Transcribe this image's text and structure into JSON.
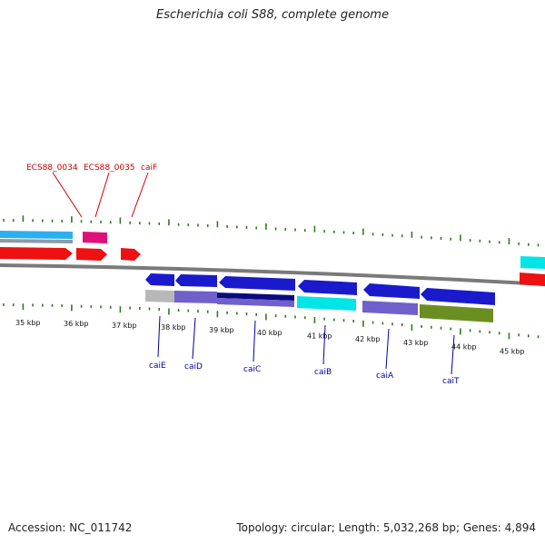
{
  "title": "Escherichia coli S88, complete genome",
  "footer": {
    "accession": "Accession: NC_011742",
    "summary": "Topology: circular; Length: 5,032,268 bp; Genes: 4,894"
  },
  "ruler": {
    "unit": "kbp",
    "labels": [
      "35 kbp",
      "36 kbp",
      "37 kbp",
      "38 kbp",
      "39 kbp",
      "40 kbp",
      "41 kbp",
      "42 kbp",
      "43 kbp",
      "44 kbp",
      "45 kbp"
    ]
  },
  "gene_labels_top": [
    "ECS88_0034",
    "ECS88_0035",
    "caiF"
  ],
  "gene_labels_bottom": [
    "caiE",
    "caiD",
    "caiC",
    "caiB",
    "caiA",
    "caiT"
  ],
  "colors": {
    "tick": "#2e7d1e",
    "backbone": "#7a7a7a",
    "top_label": "#cc0000",
    "bottom_label": "#000099",
    "gene_blue": "#1a1acc",
    "gene_red": "#ee1111",
    "gene_pink": "#e0107a",
    "gene_cyan": "#00e5e5",
    "gene_lightblue": "#2ab0f0",
    "gene_purple": "#7060cc",
    "gene_navy": "#0a0a80",
    "gene_olive": "#6b8e23",
    "gene_grey": "#b8b8b8"
  }
}
